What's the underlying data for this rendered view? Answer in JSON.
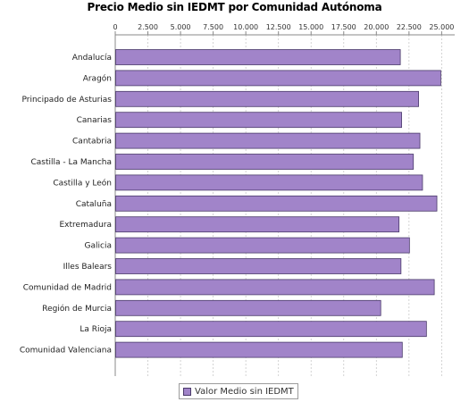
{
  "colors": {
    "bar_fill": "#a184c9",
    "bar_stroke": "#4a3a6a",
    "grid": "#c8c8c8",
    "axis": "#888888"
  },
  "legend": {
    "label": "Valor Medio sin IEDMT"
  },
  "chart_data": {
    "type": "bar",
    "orientation": "horizontal",
    "title": "Precio Medio sin IEDMT por Comunidad Autónoma",
    "xlabel": "",
    "ylabel": "",
    "xlim": [
      0,
      26000
    ],
    "x_ticks": [
      0,
      2500,
      5000,
      7500,
      10000,
      12500,
      15000,
      17500,
      20000,
      22500,
      25000
    ],
    "x_tick_labels": [
      "0",
      "2.500",
      "5.000",
      "7.500",
      "10.000",
      "12.500",
      "15.000",
      "17.500",
      "20.000",
      "22.500",
      "25.000"
    ],
    "x_axis_position": "top",
    "grid": true,
    "legend_position": "bottom",
    "categories": [
      "Andalucía",
      "Aragón",
      "Principado de Asturias",
      "Canarias",
      "Cantabria",
      "Castilla - La Mancha",
      "Castilla y León",
      "Cataluña",
      "Extremadura",
      "Galicia",
      "Illes Balears",
      "Comunidad de Madrid",
      "Región de Murcia",
      "La Rioja",
      "Comunidad Valenciana"
    ],
    "series": [
      {
        "name": "Valor Medio sin IEDMT",
        "values": [
          21800,
          24900,
          23200,
          21900,
          23300,
          22800,
          23500,
          24600,
          21700,
          22500,
          21850,
          24400,
          20300,
          23800,
          21950
        ]
      }
    ]
  }
}
